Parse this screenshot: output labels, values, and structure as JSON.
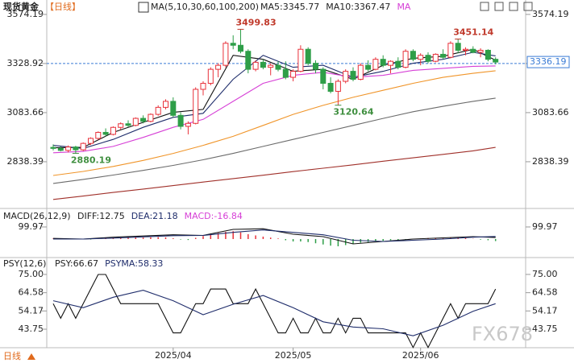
{
  "chart_data": [
    {
      "type": "candlestick",
      "title": "现货黄金",
      "subtitle": "【日线】",
      "indicator": "MA(5,10,30,60,100,200)",
      "legend": [
        {
          "text": "MA5:3345.77",
          "color": "#222222"
        },
        {
          "text": "MA10:3367.47",
          "color": "#222222"
        },
        {
          "text": "MA",
          "color": "#d63fd6"
        }
      ],
      "categories": [
        null,
        null,
        null,
        null,
        null,
        null,
        null,
        null,
        null,
        null,
        null,
        null,
        null,
        null,
        null,
        null,
        "2025/04",
        null,
        null,
        null,
        null,
        null,
        null,
        null,
        null,
        null,
        null,
        null,
        null,
        null,
        null,
        null,
        "2025/05",
        null,
        null,
        null,
        null,
        null,
        null,
        null,
        null,
        null,
        null,
        null,
        null,
        null,
        null,
        null,
        null,
        "2025/06",
        null,
        null,
        null,
        null,
        null,
        null,
        null,
        null,
        null,
        null
      ],
      "open": [
        2910,
        2905,
        2895,
        2912,
        2898,
        2930,
        2955,
        2985,
        2975,
        3010,
        3028,
        3020,
        3055,
        3040,
        3075,
        3110,
        3140,
        3070,
        3015,
        3030,
        3200,
        3230,
        3300,
        3320,
        3430,
        3420,
        3390,
        3300,
        3335,
        3310,
        3320,
        3300,
        3260,
        3290,
        3400,
        3330,
        3300,
        3230,
        3190,
        3240,
        3290,
        3250,
        3320,
        3300,
        3350,
        3320,
        3340,
        3310,
        3390,
        3350,
        3370,
        3340,
        3375,
        3360,
        3430,
        3395,
        3400,
        3385,
        3395,
        3350
      ],
      "high": [
        2925,
        2915,
        2920,
        2918,
        2935,
        2960,
        2990,
        3005,
        3015,
        3035,
        3045,
        3060,
        3070,
        3080,
        3120,
        3150,
        3160,
        3085,
        3040,
        3210,
        3240,
        3310,
        3330,
        3440,
        3470,
        3499.83,
        3400,
        3345,
        3350,
        3330,
        3340,
        3340,
        3300,
        3420,
        3410,
        3345,
        3310,
        3260,
        3250,
        3300,
        3310,
        3330,
        3345,
        3360,
        3370,
        3345,
        3360,
        3400,
        3400,
        3380,
        3385,
        3380,
        3400,
        3440,
        3451.14,
        3410,
        3415,
        3405,
        3400,
        3360
      ],
      "low": [
        2895,
        2890,
        2885,
        2880.19,
        2892,
        2922,
        2948,
        2965,
        2970,
        3000,
        3012,
        3015,
        3030,
        3035,
        3068,
        3100,
        3060,
        3000,
        2975,
        3025,
        3170,
        3220,
        3260,
        3310,
        3400,
        3380,
        3280,
        3290,
        3300,
        3270,
        3290,
        3250,
        3240,
        3285,
        3320,
        3280,
        3200,
        3180,
        3120.64,
        3230,
        3240,
        3245,
        3290,
        3295,
        3310,
        3280,
        3300,
        3305,
        3340,
        3320,
        3330,
        3335,
        3350,
        3355,
        3380,
        3370,
        3380,
        3360,
        3340,
        3325
      ],
      "close": [
        2905,
        2895,
        2912,
        2898,
        2930,
        2955,
        2985,
        2975,
        3010,
        3028,
        3020,
        3055,
        3040,
        3075,
        3110,
        3140,
        3070,
        3015,
        3030,
        3200,
        3230,
        3300,
        3320,
        3430,
        3420,
        3390,
        3300,
        3335,
        3310,
        3320,
        3300,
        3260,
        3290,
        3400,
        3330,
        3300,
        3230,
        3190,
        3240,
        3290,
        3250,
        3320,
        3300,
        3350,
        3320,
        3340,
        3310,
        3390,
        3350,
        3370,
        3340,
        3375,
        3360,
        3430,
        3395,
        3400,
        3385,
        3395,
        3350,
        3336.19
      ],
      "up_color": "#e8313a",
      "down_color": "#2e9e48",
      "ma_series": [
        {
          "color": "#111111",
          "x": [
            0,
            4,
            8,
            12,
            16,
            20,
            24,
            28,
            32,
            36,
            40,
            44,
            48,
            52,
            56,
            59
          ],
          "values": [
            2908,
            2910,
            2985,
            3035,
            3085,
            3100,
            3370,
            3350,
            3290,
            3300,
            3250,
            3320,
            3355,
            3365,
            3400,
            3346
          ]
        },
        {
          "color": "#1f2d6b",
          "x": [
            0,
            4,
            8,
            12,
            16,
            20,
            24,
            28,
            32,
            36,
            40,
            44,
            48,
            52,
            56,
            59
          ],
          "values": [
            2920,
            2905,
            2950,
            3010,
            3060,
            3080,
            3250,
            3370,
            3310,
            3320,
            3260,
            3290,
            3330,
            3350,
            3385,
            3367
          ]
        },
        {
          "color": "#d63fd6",
          "x": [
            0,
            4,
            8,
            12,
            16,
            20,
            24,
            28,
            32,
            36,
            40,
            44,
            48,
            52,
            56,
            59
          ],
          "values": [
            2883,
            2890,
            2915,
            2960,
            3010,
            3050,
            3140,
            3230,
            3270,
            3285,
            3260,
            3270,
            3295,
            3305,
            3315,
            3317
          ]
        },
        {
          "color": "#f0952a",
          "x": [
            0,
            4,
            8,
            12,
            16,
            20,
            24,
            28,
            32,
            36,
            40,
            44,
            48,
            52,
            56,
            59
          ],
          "values": [
            2770,
            2790,
            2815,
            2845,
            2880,
            2920,
            2965,
            3020,
            3075,
            3120,
            3160,
            3195,
            3230,
            3260,
            3280,
            3293
          ]
        },
        {
          "color": "#6b6b6b",
          "x": [
            0,
            4,
            8,
            12,
            16,
            20,
            24,
            28,
            32,
            36,
            40,
            44,
            48,
            52,
            56,
            59
          ],
          "values": [
            2730,
            2750,
            2772,
            2795,
            2820,
            2848,
            2880,
            2915,
            2950,
            2985,
            3020,
            3055,
            3088,
            3115,
            3140,
            3156
          ]
        },
        {
          "color": "#a0302a",
          "x": [
            0,
            4,
            8,
            12,
            16,
            20,
            24,
            28,
            32,
            36,
            40,
            44,
            48,
            52,
            56,
            59
          ],
          "values": [
            2650,
            2667,
            2685,
            2702,
            2719,
            2737,
            2754,
            2771,
            2789,
            2806,
            2823,
            2841,
            2858,
            2875,
            2893,
            2910
          ]
        }
      ],
      "annotations": [
        {
          "at": "high",
          "index": 25,
          "color": "#c0392b"
        },
        {
          "at": "high",
          "index": 54,
          "color": "#c0392b"
        },
        {
          "at": "low",
          "index": 38,
          "color": "#3f8f3f"
        },
        {
          "at": "low",
          "index": 3,
          "color": "#3f8f3f"
        }
      ],
      "price_line": 3328.92,
      "last_price_box": {
        "at": "close",
        "index": 59
      },
      "ylim": [
        2609,
        3614
      ],
      "yticks": [
        3574.19,
        3328.92,
        3083.66,
        2838.39
      ]
    },
    {
      "type": "macd",
      "title": "MACD(26,12,9)",
      "legend": [
        {
          "text": "DIFF:12.75",
          "color": "#222222"
        },
        {
          "text": "DEA:21.18",
          "color": "#1f2d6b"
        },
        {
          "text": "MACD:-16.84",
          "color": "#d63fd6"
        }
      ],
      "histogram": [
        5,
        4,
        3,
        2,
        -2,
        -4,
        2,
        5,
        8,
        10,
        12,
        14,
        12,
        14,
        16,
        14,
        6,
        -4,
        -8,
        10,
        25,
        40,
        50,
        60,
        65,
        55,
        40,
        30,
        20,
        12,
        5,
        -10,
        -20,
        -20,
        -25,
        -35,
        -45,
        -55,
        -60,
        -50,
        -40,
        -30,
        -25,
        -20,
        -15,
        -10,
        -8,
        -5,
        -2,
        5,
        8,
        10,
        6,
        10,
        15,
        8,
        2,
        -5,
        -10,
        -16.84
      ],
      "up_color": "#e8313a",
      "down_color": "#2e9e48",
      "lines": [
        {
          "color": "#111111",
          "x": [
            0,
            4,
            8,
            12,
            16,
            20,
            24,
            28,
            32,
            36,
            40,
            44,
            48,
            52,
            56,
            59
          ],
          "values": [
            5,
            0,
            15,
            25,
            35,
            30,
            80,
            85,
            40,
            20,
            -40,
            -20,
            0,
            10,
            20,
            12.75
          ]
        },
        {
          "color": "#1f2d6b",
          "x": [
            0,
            4,
            8,
            12,
            16,
            20,
            24,
            28,
            32,
            36,
            40,
            44,
            48,
            52,
            56,
            59
          ],
          "values": [
            0,
            0,
            8,
            18,
            28,
            30,
            55,
            75,
            55,
            35,
            -10,
            -20,
            -10,
            0,
            15,
            21.18
          ]
        }
      ],
      "ylim": [
        -140,
        233
      ],
      "yticks": [
        99.97
      ]
    },
    {
      "type": "psy",
      "title": "PSY(12,6)",
      "legend": [
        {
          "text": "PSY:66.67",
          "color": "#222222"
        },
        {
          "text": "PSYMA:58.33",
          "color": "#1f2d6b"
        }
      ],
      "psy": {
        "color": "#111111",
        "values": [
          58.33,
          50,
          58.33,
          50,
          58.33,
          66.67,
          75,
          75,
          66.67,
          58.33,
          58.33,
          58.33,
          58.33,
          58.33,
          58.33,
          50,
          41.67,
          41.67,
          50,
          58.33,
          58.33,
          66.67,
          66.67,
          66.67,
          58.33,
          58.33,
          58.33,
          66.67,
          58.33,
          50,
          41.67,
          41.67,
          50,
          41.67,
          41.67,
          50,
          41.67,
          41.67,
          50,
          41.67,
          50,
          50,
          41.67,
          41.67,
          41.67,
          41.67,
          41.67,
          41.67,
          33.33,
          41.67,
          33.33,
          41.67,
          50,
          58.33,
          50,
          58.33,
          58.33,
          58.33,
          58.33,
          66.67
        ]
      },
      "psyma": {
        "color": "#1f2d6b",
        "x": [
          0,
          4,
          8,
          12,
          16,
          20,
          24,
          28,
          32,
          36,
          40,
          44,
          48,
          52,
          56,
          59
        ],
        "values": [
          60,
          56,
          62,
          66,
          60,
          52,
          58,
          63,
          56,
          48,
          45,
          44,
          40,
          46,
          54,
          58.33
        ]
      },
      "ylim": [
        33.2,
        83.7
      ],
      "yticks": [
        {
          "value": 75,
          "label": "75.00"
        },
        64.58,
        54.17,
        43.75
      ]
    }
  ],
  "footer": {
    "period": "日线",
    "watermark": "FX678"
  }
}
